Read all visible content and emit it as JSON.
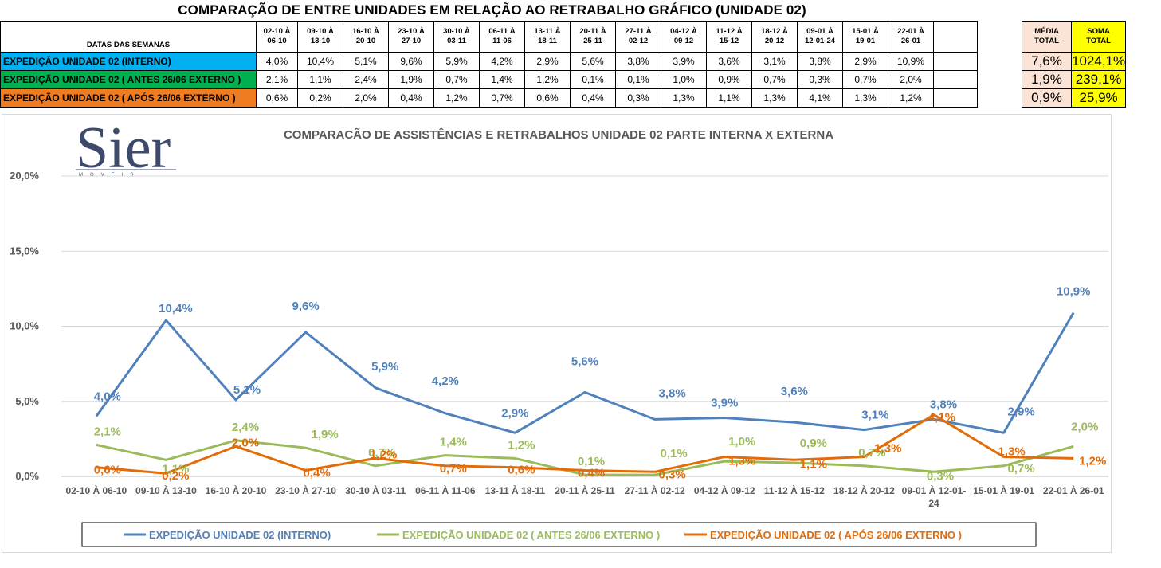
{
  "page_title": "COMPARAÇÃO DE ENTRE UNIDADES EM RELAÇÃO AO RETRABALHO GRÁFICO (UNIDADE 02)",
  "table": {
    "header_label": "DATAS DAS SEMANAS",
    "weeks": [
      [
        "02-10 À",
        "06-10"
      ],
      [
        "09-10 À",
        "13-10"
      ],
      [
        "16-10 À",
        "20-10"
      ],
      [
        "23-10 À",
        "27-10"
      ],
      [
        "30-10 À",
        "03-11"
      ],
      [
        "06-11 À",
        "11-06"
      ],
      [
        "13-11 À",
        "18-11"
      ],
      [
        "20-11 À",
        "25-11"
      ],
      [
        "27-11 À",
        "02-12"
      ],
      [
        "04-12 À",
        "09-12"
      ],
      [
        "11-12 À",
        "15-12"
      ],
      [
        "18-12 À",
        "20-12"
      ],
      [
        "09-01 À",
        "12-01-24"
      ],
      [
        "15-01 À",
        "19-01"
      ],
      [
        "22-01 À",
        "26-01"
      ]
    ],
    "media_header": [
      "MÉDIA",
      "TOTAL"
    ],
    "soma_header": [
      "SOMA",
      "TOTAL"
    ],
    "rows": [
      {
        "label": "EXPEDIÇÃO UNIDADE 02 (INTERNO)",
        "color": "#00b0f0",
        "values": [
          "4,0%",
          "10,4%",
          "5,1%",
          "9,6%",
          "5,9%",
          "4,2%",
          "2,9%",
          "5,6%",
          "3,8%",
          "3,9%",
          "3,6%",
          "3,1%",
          "3,8%",
          "2,9%",
          "10,9%"
        ],
        "media": "7,6%",
        "soma": "1024,1%"
      },
      {
        "label": "EXPEDIÇÃO UNIDADE 02 ( ANTES 26/06 EXTERNO )",
        "color": "#00b050",
        "values": [
          "2,1%",
          "1,1%",
          "2,4%",
          "1,9%",
          "0,7%",
          "1,4%",
          "1,2%",
          "0,1%",
          "0,1%",
          "1,0%",
          "0,9%",
          "0,7%",
          "0,3%",
          "0,7%",
          "2,0%"
        ],
        "media": "1,9%",
        "soma": "239,1%"
      },
      {
        "label": "EXPEDIÇÃO UNIDADE 02 ( APÓS 26/06 EXTERNO )",
        "color": "#f07c22",
        "values": [
          "0,6%",
          "0,2%",
          "2,0%",
          "0,4%",
          "1,2%",
          "0,7%",
          "0,6%",
          "0,4%",
          "0,3%",
          "1,3%",
          "1,1%",
          "1,3%",
          "4,1%",
          "1,3%",
          "1,2%"
        ],
        "media": "0,9%",
        "soma": "25,9%"
      }
    ]
  },
  "logo": {
    "text": "Sier",
    "subtext": "MOVEIS"
  },
  "chart_data": {
    "type": "line",
    "title": "COMPARACÃO DE ASSISTÊNCIAS E RETRABALHOS UNIDADE 02 PARTE INTERNA X EXTERNA",
    "xlabel": "",
    "ylabel": "",
    "ylim": [
      0,
      20
    ],
    "yticks": [
      "0,0%",
      "5,0%",
      "10,0%",
      "15,0%",
      "20,0%"
    ],
    "grid": true,
    "legend_position": "bottom",
    "categories": [
      [
        "02-10 À 06-10"
      ],
      [
        "09-10 À 13-10"
      ],
      [
        "16-10 À 20-10"
      ],
      [
        "23-10 À 27-10"
      ],
      [
        "30-10 À 03-11"
      ],
      [
        "06-11 À 11-06"
      ],
      [
        "13-11 À 18-11"
      ],
      [
        "20-11 À 25-11"
      ],
      [
        "27-11 À 02-12"
      ],
      [
        "04-12 À 09-12"
      ],
      [
        "11-12 À 15-12"
      ],
      [
        "18-12 À 20-12"
      ],
      [
        "09-01 À 12-01-",
        "24"
      ],
      [
        "15-01 À 19-01"
      ],
      [
        "22-01 À 26-01"
      ]
    ],
    "series": [
      {
        "name": "EXPEDIÇÃO UNIDADE 02 (INTERNO)",
        "color": "#4f81bd",
        "values": [
          4.0,
          10.4,
          5.1,
          9.6,
          5.9,
          4.2,
          2.9,
          5.6,
          3.8,
          3.9,
          3.6,
          3.1,
          3.8,
          2.9,
          10.9
        ],
        "labels": [
          "4,0%",
          "10,4%",
          "5,1%",
          "9,6%",
          "5,9%",
          "4,2%",
          "2,9%",
          "5,6%",
          "3,8%",
          "3,9%",
          "3,6%",
          "3,1%",
          "3,8%",
          "2,9%",
          "10,9%"
        ]
      },
      {
        "name": "EXPEDIÇÃO UNIDADE 02 ( ANTES 26/06 EXTERNO )",
        "color": "#9bbb59",
        "values": [
          2.1,
          1.1,
          2.4,
          1.9,
          0.7,
          1.4,
          1.2,
          0.1,
          0.1,
          1.0,
          0.9,
          0.7,
          0.3,
          0.7,
          2.0
        ],
        "labels": [
          "2,1%",
          "1,1%",
          "2,4%",
          "1,9%",
          "0,7%",
          "1,4%",
          "1,2%",
          "0,1%",
          "0,1%",
          "1,0%",
          "0,9%",
          "0,7%",
          "0,3%",
          "0,7%",
          "2,0%"
        ]
      },
      {
        "name": "EXPEDIÇÃO UNIDADE 02 ( APÓS 26/06 EXTERNO )",
        "color": "#e36c09",
        "values": [
          0.6,
          0.2,
          2.0,
          0.4,
          1.2,
          0.7,
          0.6,
          0.4,
          0.3,
          1.3,
          1.1,
          1.3,
          4.1,
          1.3,
          1.2
        ],
        "labels": [
          "0,6%",
          "0,2%",
          "2,0%",
          "0,4%",
          "1,2%",
          "0,7%",
          "0,6%",
          "0,4%",
          "0,3%",
          "1,3%",
          "1,1%",
          "1,3%",
          "4,1%",
          "1,3%",
          "1,2%"
        ]
      }
    ]
  }
}
